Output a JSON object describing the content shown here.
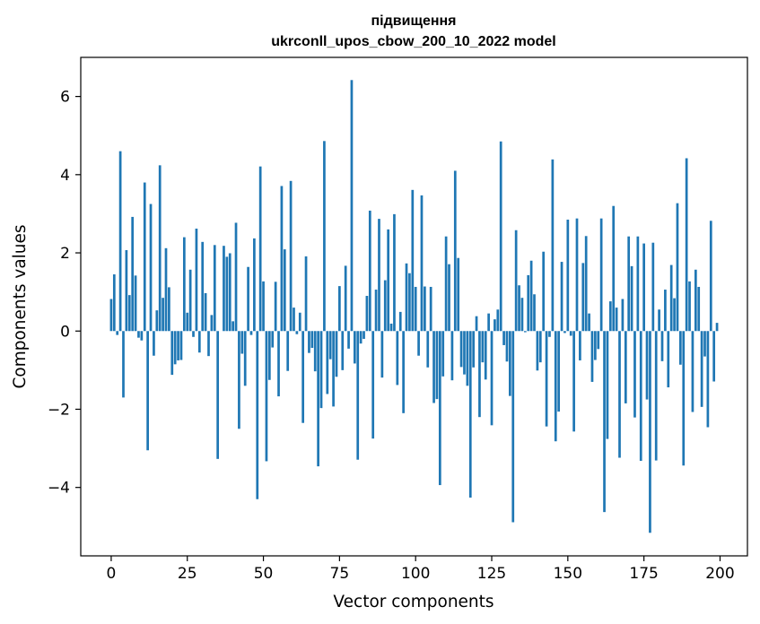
{
  "chart_data": {
    "type": "bar",
    "title_line1": "підвищення",
    "title_line2": "ukrconll_upos_cbow_200_10_2022 model",
    "xlabel": "Vector components",
    "ylabel": "Components values",
    "xlim": [
      -10,
      209
    ],
    "ylim": [
      -5.75,
      7.0
    ],
    "xticks": [
      0,
      25,
      50,
      75,
      100,
      125,
      150,
      175,
      200
    ],
    "yticks": [
      -4,
      -2,
      0,
      2,
      4,
      6
    ],
    "bar_color": "#1f77b4",
    "values": [
      0.82,
      1.45,
      -0.1,
      4.6,
      -1.7,
      2.07,
      0.92,
      2.92,
      1.42,
      -0.17,
      -0.24,
      3.8,
      -3.05,
      3.25,
      -0.63,
      0.53,
      4.24,
      0.85,
      2.12,
      1.12,
      -1.12,
      -0.85,
      -0.75,
      -0.74,
      2.4,
      0.47,
      1.57,
      -0.15,
      2.62,
      -0.55,
      2.28,
      0.97,
      -0.64,
      0.41,
      2.2,
      -3.27,
      0.0,
      2.18,
      1.9,
      1.99,
      0.25,
      2.77,
      -2.5,
      -0.58,
      -1.4,
      1.64,
      -0.1,
      2.37,
      -4.3,
      4.21,
      1.27,
      -3.33,
      -1.25,
      -0.42,
      1.26,
      -1.67,
      3.71,
      2.09,
      -1.02,
      3.84,
      0.6,
      -0.08,
      0.47,
      -2.35,
      1.91,
      -0.56,
      -0.43,
      -1.03,
      -3.46,
      -1.97,
      4.86,
      -1.61,
      -0.72,
      -1.93,
      -1.17,
      1.15,
      -1.0,
      1.67,
      -0.45,
      6.42,
      -0.83,
      -3.29,
      -0.32,
      -0.2,
      0.9,
      3.08,
      -2.75,
      1.06,
      2.87,
      -1.19,
      1.3,
      2.6,
      0.19,
      2.99,
      -1.38,
      0.49,
      -2.1,
      1.73,
      1.48,
      3.61,
      1.13,
      -0.63,
      3.47,
      1.14,
      -0.93,
      1.13,
      -1.84,
      -1.74,
      -3.94,
      -1.16,
      2.42,
      1.71,
      -1.26,
      4.1,
      1.87,
      -0.92,
      -1.11,
      -1.4,
      -4.26,
      -0.93,
      0.38,
      -2.2,
      -0.8,
      -1.24,
      0.45,
      -2.41,
      0.3,
      0.55,
      4.85,
      -0.36,
      -0.78,
      -1.66,
      -4.89,
      2.58,
      1.17,
      0.85,
      -0.03,
      1.43,
      1.8,
      0.94,
      -1.01,
      -0.8,
      2.03,
      -2.44,
      -0.15,
      4.39,
      -2.82,
      -2.06,
      1.77,
      -0.05,
      2.85,
      -0.12,
      -2.57,
      2.88,
      -0.75,
      1.74,
      2.43,
      0.45,
      -1.3,
      -0.74,
      -0.46,
      2.88,
      -4.63,
      -2.76,
      0.76,
      3.2,
      0.6,
      -3.24,
      0.82,
      -1.85,
      2.42,
      1.66,
      -2.21,
      2.42,
      -3.32,
      2.24,
      -1.75,
      -5.16,
      2.26,
      -3.31,
      0.55,
      -0.77,
      1.06,
      -1.44,
      1.69,
      0.84,
      3.27,
      -0.86,
      -3.44,
      4.42,
      1.27,
      -2.07,
      1.57,
      1.13,
      -1.94,
      -0.65,
      -2.46,
      2.82,
      -1.29,
      0.21
    ]
  }
}
